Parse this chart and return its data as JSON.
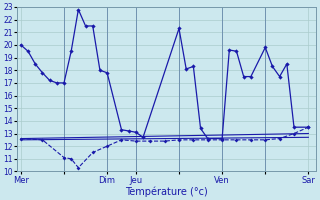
{
  "title": "Température (°c)",
  "bg_color": "#cce8ee",
  "grid_color": "#aacccc",
  "line_color": "#1a1aaa",
  "ylim": [
    10,
    23
  ],
  "yticks": [
    10,
    11,
    12,
    13,
    14,
    15,
    16,
    17,
    18,
    19,
    20,
    21,
    22,
    23
  ],
  "day_positions": [
    0,
    6,
    12,
    16,
    22,
    28,
    34,
    40
  ],
  "day_labels": [
    "Mer",
    "",
    "Dim",
    "Jeu",
    "",
    "Ven",
    "",
    "Sar"
  ],
  "xlim": [
    -0.5,
    41
  ],
  "line_main_x": [
    0,
    1,
    2,
    3,
    4,
    5,
    6,
    7,
    8,
    9,
    10,
    11,
    12,
    14,
    15,
    16,
    17,
    22,
    23,
    24,
    25,
    26,
    28,
    29,
    30,
    31,
    32,
    34,
    35,
    36,
    37,
    38,
    40
  ],
  "line_main_y": [
    20,
    19.5,
    18.5,
    17.8,
    17.2,
    17.0,
    17.0,
    19.5,
    22.8,
    21.5,
    21.5,
    18.0,
    17.8,
    13.3,
    13.2,
    13.1,
    12.7,
    21.3,
    18.1,
    18.3,
    13.4,
    12.6,
    12.6,
    19.6,
    19.5,
    17.5,
    17.5,
    19.8,
    18.3,
    17.5,
    18.5,
    13.5,
    13.5
  ],
  "line_min_x": [
    0,
    3,
    6,
    7,
    8,
    10,
    12,
    14,
    16,
    18,
    20,
    22,
    24,
    26,
    28,
    30,
    32,
    34,
    36,
    38,
    40
  ],
  "line_min_y": [
    12.6,
    12.5,
    11.1,
    11.0,
    10.3,
    11.5,
    12.0,
    12.5,
    12.4,
    12.4,
    12.4,
    12.5,
    12.5,
    12.5,
    12.5,
    12.5,
    12.5,
    12.5,
    12.6,
    13.0,
    13.5
  ],
  "trend1_x": [
    0,
    40
  ],
  "trend1_y": [
    12.6,
    13.0
  ],
  "trend2_x": [
    0,
    40
  ],
  "trend2_y": [
    12.5,
    12.7
  ],
  "vlines": [
    6,
    12,
    16,
    22,
    28,
    34
  ]
}
